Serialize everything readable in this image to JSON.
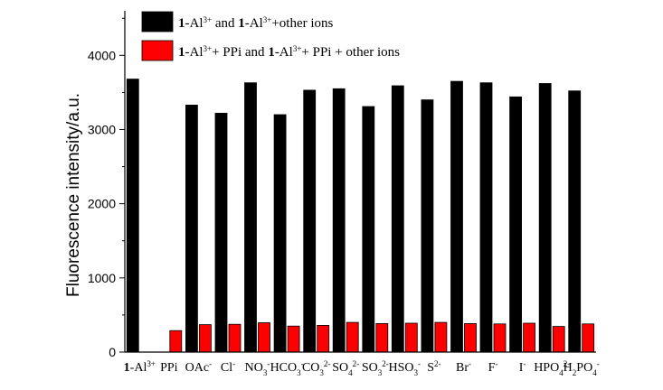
{
  "chart_data": {
    "type": "bar",
    "ylabel": "Fluorescence intensity/a.u.",
    "xlabel": "",
    "ylim": [
      0,
      4600
    ],
    "yticks": [
      0,
      1000,
      2000,
      3000,
      4000
    ],
    "grid": false,
    "legend_placement": "top",
    "categories": [
      {
        "segments": [
          {
            "t": "1",
            "style": "bold"
          },
          {
            "t": "-Al"
          },
          {
            "t": "3+",
            "style": "sup"
          }
        ]
      },
      {
        "segments": [
          {
            "t": "PPi"
          }
        ]
      },
      {
        "segments": [
          {
            "t": "OAc"
          },
          {
            "t": "-",
            "style": "sup"
          }
        ]
      },
      {
        "segments": [
          {
            "t": "Cl"
          },
          {
            "t": "-",
            "style": "sup"
          }
        ]
      },
      {
        "segments": [
          {
            "t": "NO"
          },
          {
            "t": "3",
            "style": "sub"
          },
          {
            "t": "-",
            "style": "sup"
          }
        ]
      },
      {
        "segments": [
          {
            "t": "HCO"
          },
          {
            "t": "3",
            "style": "sub"
          },
          {
            "t": "-",
            "style": "sup"
          }
        ]
      },
      {
        "segments": [
          {
            "t": "CO"
          },
          {
            "t": "3",
            "style": "sub"
          },
          {
            "t": "2-",
            "style": "sup"
          }
        ]
      },
      {
        "segments": [
          {
            "t": "SO"
          },
          {
            "t": "4",
            "style": "sub"
          },
          {
            "t": "2-",
            "style": "sup"
          }
        ]
      },
      {
        "segments": [
          {
            "t": "SO"
          },
          {
            "t": "3",
            "style": "sub"
          },
          {
            "t": "2-",
            "style": "sup"
          }
        ]
      },
      {
        "segments": [
          {
            "t": "HSO"
          },
          {
            "t": "3",
            "style": "sub"
          },
          {
            "t": "-",
            "style": "sup"
          }
        ]
      },
      {
        "segments": [
          {
            "t": "S"
          },
          {
            "t": "2-",
            "style": "sup"
          }
        ]
      },
      {
        "segments": [
          {
            "t": "Br"
          },
          {
            "t": "-",
            "style": "sup"
          }
        ]
      },
      {
        "segments": [
          {
            "t": "F"
          },
          {
            "t": "-",
            "style": "sup"
          }
        ]
      },
      {
        "segments": [
          {
            "t": "I"
          },
          {
            "t": "-",
            "style": "sup"
          }
        ]
      },
      {
        "segments": [
          {
            "t": "HPO"
          },
          {
            "t": "4",
            "style": "sub"
          },
          {
            "t": "2-",
            "style": "sup"
          }
        ]
      },
      {
        "segments": [
          {
            "t": "H"
          },
          {
            "t": "2",
            "style": "sub"
          },
          {
            "t": "PO"
          },
          {
            "t": "4",
            "style": "sub"
          },
          {
            "t": "-",
            "style": "sup"
          }
        ]
      }
    ],
    "series": [
      {
        "color": "#000000",
        "values": [
          3680,
          null,
          3330,
          3220,
          3630,
          3200,
          3530,
          3550,
          3310,
          3590,
          3400,
          3650,
          3630,
          3440,
          3620,
          3520
        ],
        "legend": [
          {
            "t": "1",
            "style": "bold"
          },
          {
            "t": "-Al"
          },
          {
            "t": "3+",
            "style": "sup"
          },
          {
            "t": " and "
          },
          {
            "t": "1",
            "style": "bold"
          },
          {
            "t": "-Al"
          },
          {
            "t": "3+",
            "style": "sup"
          },
          {
            "t": "+other ions"
          }
        ]
      },
      {
        "color": "#ff0000",
        "values": [
          null,
          290,
          370,
          375,
          395,
          350,
          360,
          400,
          385,
          390,
          400,
          385,
          380,
          390,
          345,
          380
        ],
        "legend": [
          {
            "t": "1",
            "style": "bold"
          },
          {
            "t": "-Al"
          },
          {
            "t": "3+",
            "style": "sup"
          },
          {
            "t": "+ PPi and "
          },
          {
            "t": "1",
            "style": "bold"
          },
          {
            "t": "-Al"
          },
          {
            "t": "3+",
            "style": "sup"
          },
          {
            "t": "+ PPi + other ions"
          }
        ]
      }
    ]
  }
}
